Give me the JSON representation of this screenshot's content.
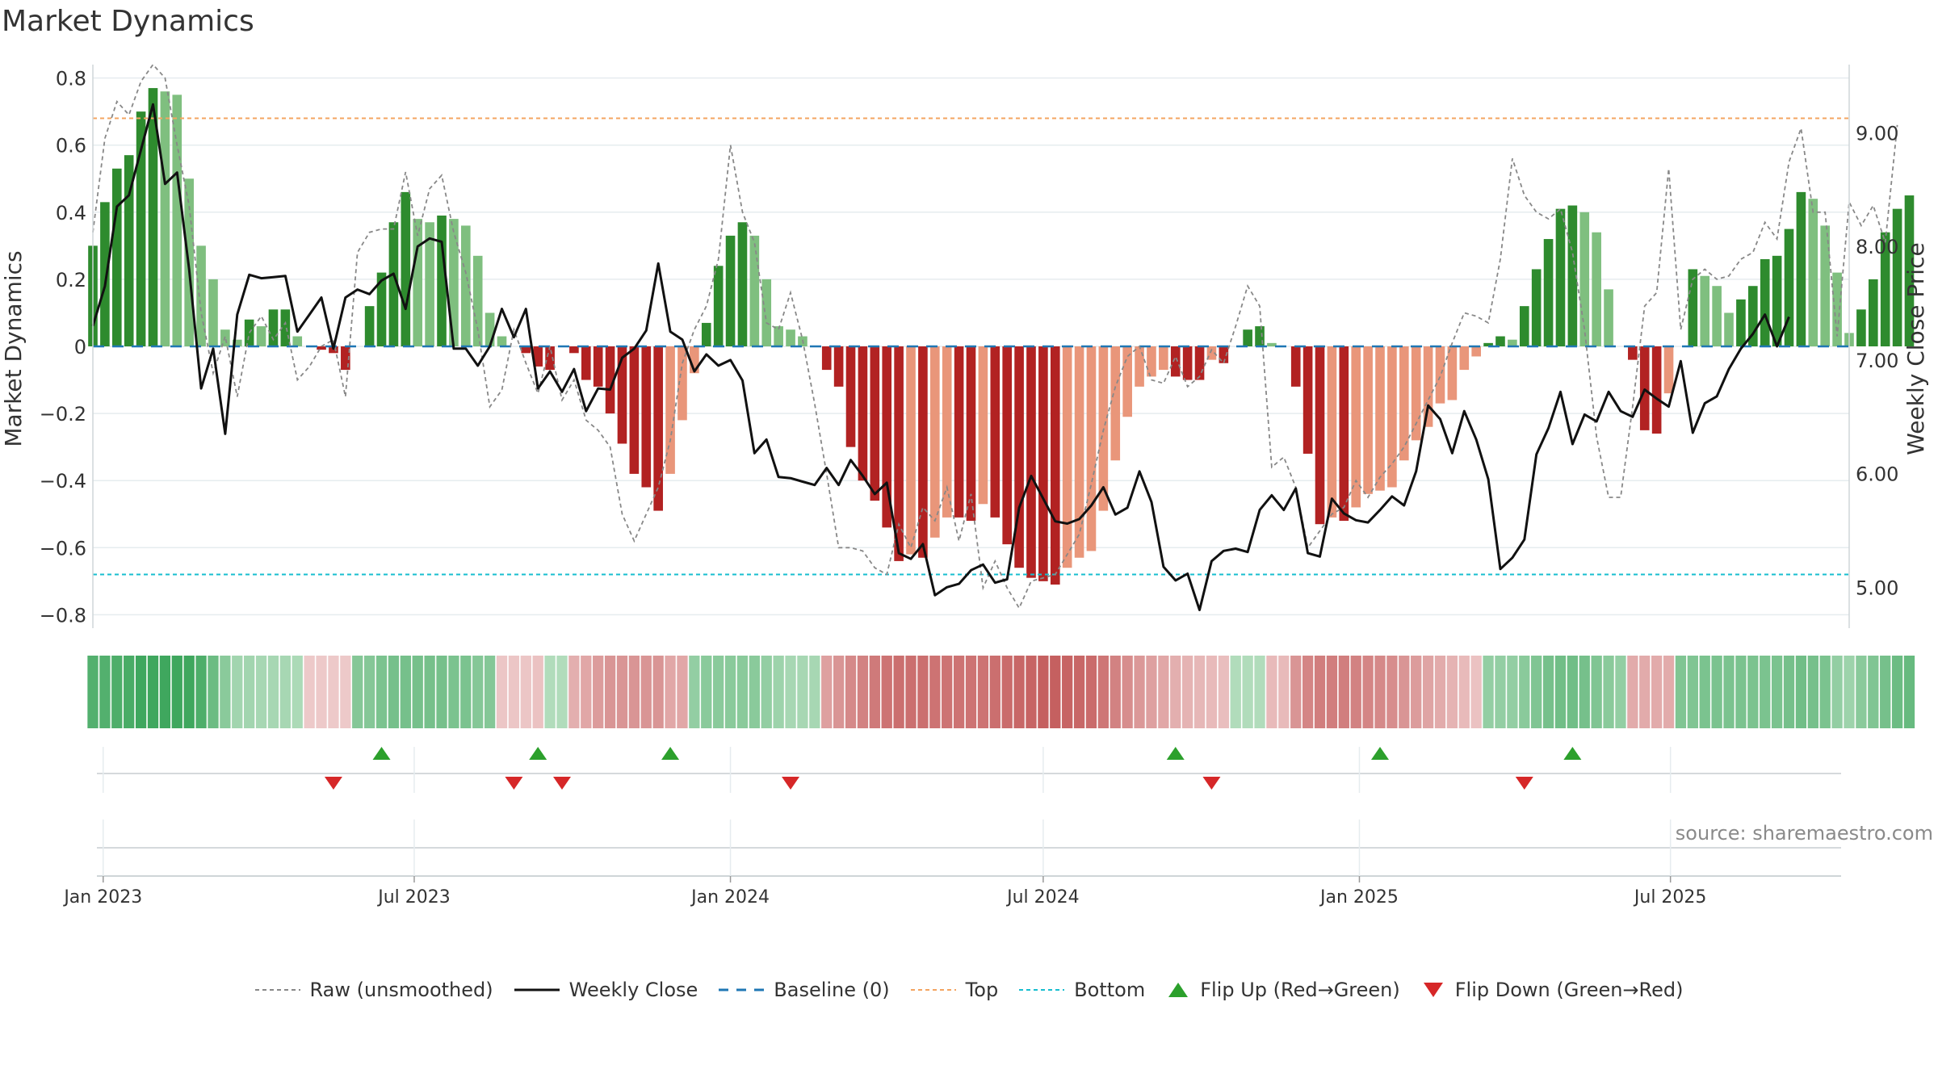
{
  "title": "Market Dynamics",
  "source": "source: sharemaestro.com",
  "colors": {
    "green_strong": "#2e8b2e",
    "green_light": "#7fbf7f",
    "red_strong": "#b22222",
    "red_light": "#e9967a",
    "close_line": "#111111",
    "raw_line": "#888888",
    "baseline": "#1f77b4",
    "top": "#f4a460",
    "bottom": "#17becf",
    "flip_up": "#2ca02c",
    "flip_down": "#d62728"
  },
  "legend": {
    "raw": "Raw (unsmoothed)",
    "close": "Weekly Close",
    "baseline": "Baseline (0)",
    "top": "Top",
    "bottom": "Bottom",
    "flip_up": "Flip Up (Red→Green)",
    "flip_down": "Flip Down (Green→Red)"
  },
  "chart_data": {
    "type": "bar",
    "ylabel": "Market Dynamics",
    "y2label": "Weekly Close Price",
    "ylim": [
      -0.84,
      0.84
    ],
    "y2lim": [
      4.64,
      9.6
    ],
    "yticks": [
      0.8,
      0.6,
      0.4,
      0.2,
      0,
      -0.2,
      -0.4,
      -0.6,
      -0.8
    ],
    "ytick_labels": [
      "0.8",
      "0.6",
      "0.4",
      "0.2",
      "0",
      "−0.2",
      "−0.4",
      "−0.6",
      "−0.8"
    ],
    "y2ticks": [
      9.0,
      8.0,
      7.0,
      6.0,
      5.0
    ],
    "y2tick_labels": [
      "9.00",
      "8.00",
      "7.00",
      "6.00",
      "5.00"
    ],
    "x_start": "2022-12-26",
    "x_end": "2025-10-13",
    "x_ticks": [
      {
        "date": "2023-01-01",
        "label": "Jan 2023"
      },
      {
        "date": "2023-07-01",
        "label": "Jul 2023"
      },
      {
        "date": "2024-01-01",
        "label": "Jan 2024"
      },
      {
        "date": "2024-07-01",
        "label": "Jul 2024"
      },
      {
        "date": "2025-01-01",
        "label": "Jan 2025"
      },
      {
        "date": "2025-07-01",
        "label": "Jul 2025"
      }
    ],
    "reference_lines": {
      "baseline": 0,
      "top": 0.68,
      "bottom": -0.68
    },
    "first_week": "2022-12-26",
    "dynamics": [
      0.3,
      0.43,
      0.53,
      0.57,
      0.7,
      0.77,
      0.76,
      0.75,
      0.5,
      0.3,
      0.2,
      0.05,
      0.02,
      0.08,
      0.06,
      0.11,
      0.11,
      0.03,
      0.0,
      -0.01,
      -0.02,
      -0.07,
      0.0,
      0.12,
      0.22,
      0.37,
      0.46,
      0.38,
      0.37,
      0.39,
      0.38,
      0.36,
      0.27,
      0.1,
      0.03,
      0.0,
      -0.02,
      -0.06,
      -0.07,
      0.0,
      -0.02,
      -0.1,
      -0.12,
      -0.2,
      -0.29,
      -0.38,
      -0.42,
      -0.49,
      -0.38,
      -0.22,
      -0.08,
      0.07,
      0.24,
      0.33,
      0.37,
      0.33,
      0.2,
      0.06,
      0.05,
      0.03,
      0.0,
      -0.07,
      -0.12,
      -0.3,
      -0.4,
      -0.46,
      -0.54,
      -0.64,
      -0.62,
      -0.63,
      -0.57,
      -0.51,
      -0.51,
      -0.52,
      -0.47,
      -0.51,
      -0.59,
      -0.66,
      -0.69,
      -0.7,
      -0.71,
      -0.66,
      -0.63,
      -0.61,
      -0.49,
      -0.34,
      -0.21,
      -0.12,
      -0.09,
      -0.07,
      -0.09,
      -0.1,
      -0.1,
      -0.04,
      -0.05,
      0.0,
      0.05,
      0.06,
      0.01,
      0.0,
      -0.12,
      -0.32,
      -0.53,
      -0.51,
      -0.52,
      -0.48,
      -0.44,
      -0.43,
      -0.42,
      -0.34,
      -0.28,
      -0.24,
      -0.17,
      -0.16,
      -0.07,
      -0.03,
      0.01,
      0.03,
      0.02,
      0.12,
      0.23,
      0.32,
      0.41,
      0.42,
      0.4,
      0.34,
      0.17,
      0.0,
      -0.04,
      -0.25,
      -0.26,
      -0.14,
      0.0,
      0.23,
      0.21,
      0.18,
      0.1,
      0.14,
      0.18,
      0.26,
      0.27,
      0.35,
      0.46,
      0.44,
      0.36,
      0.22,
      0.04,
      0.11,
      0.2,
      0.34,
      0.41,
      0.45
    ],
    "raw": [
      0.34,
      0.62,
      0.73,
      0.69,
      0.79,
      0.84,
      0.8,
      0.6,
      0.42,
      0.1,
      -0.08,
      0.03,
      -0.15,
      0.04,
      0.09,
      0.02,
      0.07,
      -0.1,
      -0.06,
      0.0,
      0.02,
      -0.15,
      0.28,
      0.34,
      0.35,
      0.35,
      0.52,
      0.33,
      0.47,
      0.51,
      0.34,
      0.22,
      0.05,
      -0.18,
      -0.13,
      0.05,
      -0.05,
      -0.14,
      0.0,
      -0.16,
      -0.1,
      -0.22,
      -0.25,
      -0.3,
      -0.5,
      -0.58,
      -0.5,
      -0.42,
      -0.28,
      -0.05,
      0.05,
      0.12,
      0.26,
      0.6,
      0.4,
      0.31,
      0.07,
      0.05,
      0.16,
      0.02,
      -0.17,
      -0.38,
      -0.6,
      -0.6,
      -0.61,
      -0.66,
      -0.68,
      -0.53,
      -0.6,
      -0.48,
      -0.52,
      -0.42,
      -0.58,
      -0.44,
      -0.72,
      -0.64,
      -0.72,
      -0.78,
      -0.7,
      -0.69,
      -0.68,
      -0.62,
      -0.56,
      -0.41,
      -0.25,
      -0.12,
      -0.03,
      0.0,
      -0.1,
      -0.11,
      -0.03,
      -0.12,
      -0.09,
      -0.01,
      -0.05,
      0.06,
      0.18,
      0.12,
      -0.36,
      -0.33,
      -0.42,
      -0.6,
      -0.55,
      -0.5,
      -0.48,
      -0.4,
      -0.45,
      -0.39,
      -0.35,
      -0.3,
      -0.23,
      -0.16,
      -0.09,
      0.01,
      0.1,
      0.09,
      0.07,
      0.26,
      0.56,
      0.45,
      0.4,
      0.38,
      0.41,
      0.28,
      0.05,
      -0.27,
      -0.45,
      -0.45,
      -0.18,
      0.12,
      0.16,
      0.53,
      0.05,
      0.2,
      0.23,
      0.2,
      0.21,
      0.26,
      0.28,
      0.37,
      0.32,
      0.55,
      0.65,
      0.4,
      0.4,
      0.03,
      0.43,
      0.36,
      0.42,
      0.31,
      0.66
    ],
    "close": [
      7.3,
      7.65,
      8.35,
      8.45,
      8.85,
      9.25,
      8.55,
      8.65,
      7.8,
      6.75,
      7.1,
      6.35,
      7.4,
      7.75,
      7.72,
      7.73,
      7.74,
      7.25,
      7.4,
      7.55,
      7.1,
      7.55,
      7.62,
      7.58,
      7.7,
      7.76,
      7.45,
      8.0,
      8.07,
      8.04,
      7.1,
      7.1,
      6.95,
      7.12,
      7.45,
      7.2,
      7.45,
      6.75,
      6.9,
      6.72,
      6.92,
      6.55,
      6.75,
      6.74,
      7.02,
      7.1,
      7.26,
      7.85,
      7.25,
      7.18,
      6.9,
      7.05,
      6.95,
      7.0,
      6.82,
      6.18,
      6.3,
      5.97,
      5.96,
      5.93,
      5.9,
      6.05,
      5.9,
      6.12,
      5.98,
      5.82,
      5.92,
      5.3,
      5.25,
      5.38,
      4.93,
      5.0,
      5.03,
      5.15,
      5.2,
      5.04,
      5.07,
      5.7,
      5.98,
      5.78,
      5.58,
      5.56,
      5.6,
      5.72,
      5.88,
      5.64,
      5.7,
      6.02,
      5.75,
      5.18,
      5.06,
      5.12,
      4.8,
      5.23,
      5.32,
      5.34,
      5.31,
      5.68,
      5.81,
      5.68,
      5.87,
      5.3,
      5.27,
      5.78,
      5.65,
      5.59,
      5.57,
      5.68,
      5.8,
      5.72,
      6.02,
      6.6,
      6.48,
      6.18,
      6.55,
      6.3,
      5.95,
      5.16,
      5.26,
      5.42,
      6.17,
      6.4,
      6.72,
      6.26,
      6.52,
      6.46,
      6.72,
      6.55,
      6.5,
      6.74,
      6.66,
      6.59,
      6.99,
      6.36,
      6.62,
      6.68,
      6.92,
      7.1,
      7.23,
      7.4,
      7.12,
      7.38
    ],
    "heat_strip": [
      0.6,
      0.6,
      0.62,
      0.64,
      0.68,
      0.68,
      0.68,
      0.68,
      0.68,
      0.62,
      0.5,
      0.38,
      0.28,
      0.28,
      0.26,
      0.26,
      0.26,
      0.24,
      -0.12,
      -0.12,
      -0.12,
      -0.12,
      0.4,
      0.4,
      0.44,
      0.46,
      0.46,
      0.46,
      0.46,
      0.46,
      0.44,
      0.44,
      0.4,
      0.4,
      -0.14,
      -0.14,
      -0.14,
      -0.16,
      0.22,
      0.22,
      -0.26,
      -0.3,
      -0.36,
      -0.4,
      -0.4,
      -0.4,
      -0.4,
      -0.4,
      -0.3,
      -0.3,
      0.34,
      0.38,
      0.38,
      0.38,
      0.38,
      0.38,
      0.34,
      0.3,
      0.26,
      0.26,
      0.26,
      -0.34,
      -0.4,
      -0.46,
      -0.5,
      -0.54,
      -0.58,
      -0.6,
      -0.6,
      -0.6,
      -0.58,
      -0.58,
      -0.58,
      -0.58,
      -0.58,
      -0.6,
      -0.62,
      -0.64,
      -0.66,
      -0.68,
      -0.68,
      -0.66,
      -0.64,
      -0.62,
      -0.56,
      -0.5,
      -0.44,
      -0.38,
      -0.34,
      -0.3,
      -0.26,
      -0.24,
      -0.22,
      -0.2,
      -0.18,
      0.22,
      0.22,
      0.22,
      -0.2,
      -0.2,
      -0.4,
      -0.48,
      -0.52,
      -0.52,
      -0.52,
      -0.5,
      -0.48,
      -0.46,
      -0.44,
      -0.4,
      -0.36,
      -0.32,
      -0.28,
      -0.24,
      -0.2,
      -0.16,
      0.34,
      0.34,
      0.34,
      0.38,
      0.42,
      0.46,
      0.48,
      0.48,
      0.46,
      0.42,
      0.38,
      0.34,
      -0.28,
      -0.28,
      -0.28,
      -0.28,
      0.42,
      0.42,
      0.44,
      0.44,
      0.44,
      0.44,
      0.44,
      0.44,
      0.44,
      0.46,
      0.48,
      0.46,
      0.44,
      0.34,
      0.3,
      0.38,
      0.42,
      0.46,
      0.5,
      0.52
    ],
    "flip_up_dates": [
      "2023-06-12",
      "2023-09-11",
      "2023-11-27",
      "2024-09-16",
      "2025-01-13",
      "2025-05-05"
    ],
    "flip_down_dates": [
      "2023-05-15",
      "2023-08-28",
      "2023-09-25",
      "2024-02-05",
      "2024-10-07",
      "2025-04-07"
    ]
  }
}
